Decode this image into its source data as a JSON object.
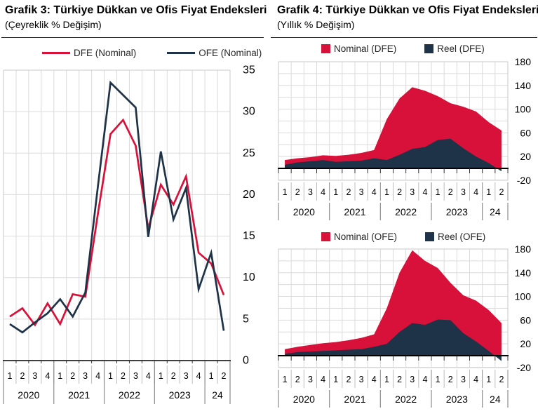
{
  "colors": {
    "red": "#D8113A",
    "navy": "#1E3347",
    "grid": "#DBDBDB",
    "box": "#C9C9C9",
    "axis": "#000000",
    "quarter_sep": "#BDBDBD",
    "year_sep": "#8C8C8C",
    "text": "#000000"
  },
  "left_panel": {
    "title": "Grafik 3: Türkiye Dükkan ve Ofis Fiyat Endeksleri",
    "subtitle": "(Çeyreklik % Değişim)"
  },
  "right_panel": {
    "title": "Grafik 4: Türkiye Dükkan ve Ofis Fiyat Endeksleri",
    "subtitle": "(Yıllık % Değişim)"
  },
  "chart_data": [
    {
      "id": "g3",
      "type": "line",
      "title": "Türkiye Dükkan ve Ofis Fiyat Endeksleri (Çeyreklik % Değişim)",
      "legend_position": "top",
      "grid": true,
      "quarters": [
        "1",
        "2",
        "3",
        "4",
        "1",
        "2",
        "3",
        "4",
        "1",
        "2",
        "3",
        "4",
        "1",
        "2",
        "3",
        "4",
        "1",
        "2"
      ],
      "years": [
        {
          "label": "2020",
          "span": 4
        },
        {
          "label": "2021",
          "span": 4
        },
        {
          "label": "2022",
          "span": 4
        },
        {
          "label": "2023",
          "span": 4
        },
        {
          "label": "24",
          "span": 2
        }
      ],
      "ylim": [
        0,
        35
      ],
      "ytick_step": 5,
      "yticks": [
        35,
        30,
        25,
        20,
        15,
        10,
        5,
        0
      ],
      "series": [
        {
          "name": "DFE (Nominal)",
          "color_key": "red",
          "values": [
            5.3,
            6.3,
            4.3,
            6.9,
            4.4,
            8.0,
            7.7,
            17.7,
            27.3,
            29.0,
            25.9,
            15.9,
            21.2,
            18.8,
            22.2,
            13.0,
            11.7,
            7.9
          ]
        },
        {
          "name": "OFE (Nominal)",
          "color_key": "navy",
          "values": [
            4.4,
            3.4,
            4.6,
            5.7,
            7.4,
            5.3,
            8.2,
            21.0,
            33.5,
            32.0,
            30.5,
            14.9,
            25.2,
            17.0,
            20.8,
            8.6,
            13.0,
            3.6
          ]
        }
      ]
    },
    {
      "id": "g4_top",
      "type": "area",
      "title": "Türkiye Dükkan Fiyat Endeksi (Yıllık % Değişim)",
      "legend_position": "top",
      "grid": true,
      "quarters": [
        "1",
        "2",
        "3",
        "4",
        "1",
        "2",
        "3",
        "4",
        "1",
        "2",
        "3",
        "4",
        "1",
        "2",
        "3",
        "4",
        "1",
        "2"
      ],
      "years": [
        {
          "label": "2020",
          "span": 4
        },
        {
          "label": "2021",
          "span": 4
        },
        {
          "label": "2022",
          "span": 4
        },
        {
          "label": "2023",
          "span": 4
        },
        {
          "label": "24",
          "span": 2
        }
      ],
      "ylim": [
        -20,
        180
      ],
      "ytick_step": 20,
      "yticks": [
        180,
        140,
        100,
        60,
        20,
        -20
      ],
      "series": [
        {
          "name": "Nominal (DFE)",
          "color_key": "red",
          "values": [
            14,
            17,
            19,
            22,
            21,
            23,
            26,
            31,
            83,
            118,
            137,
            131,
            122,
            110,
            104,
            96,
            78,
            64
          ]
        },
        {
          "name": "Reel (DFE)",
          "color_key": "navy",
          "values": [
            6,
            10,
            12,
            14,
            11,
            12,
            13,
            17,
            14,
            23,
            33,
            36,
            48,
            50,
            34,
            20,
            9,
            -5
          ]
        }
      ]
    },
    {
      "id": "g4_bottom",
      "type": "area",
      "title": "Türkiye Ofis Fiyat Endeksi (Yıllık % Değişim)",
      "legend_position": "top",
      "grid": true,
      "quarters": [
        "1",
        "2",
        "3",
        "4",
        "1",
        "2",
        "3",
        "4",
        "1",
        "2",
        "3",
        "4",
        "1",
        "2",
        "3",
        "4",
        "1",
        "2"
      ],
      "years": [
        {
          "label": "2020",
          "span": 4
        },
        {
          "label": "2021",
          "span": 4
        },
        {
          "label": "2022",
          "span": 4
        },
        {
          "label": "2023",
          "span": 4
        },
        {
          "label": "24",
          "span": 2
        }
      ],
      "ylim": [
        -20,
        180
      ],
      "ytick_step": 20,
      "yticks": [
        180,
        140,
        100,
        60,
        20,
        -20
      ],
      "series": [
        {
          "name": "Nominal (OFE)",
          "color_key": "red",
          "values": [
            11,
            15,
            18,
            21,
            23,
            26,
            30,
            36,
            80,
            140,
            178,
            160,
            148,
            123,
            102,
            93,
            77,
            55
          ]
        },
        {
          "name": "Reel (OFE)",
          "color_key": "navy",
          "values": [
            3,
            6,
            7,
            8,
            9,
            10,
            11,
            15,
            20,
            40,
            55,
            52,
            61,
            60,
            38,
            24,
            8,
            -9
          ]
        }
      ]
    }
  ]
}
